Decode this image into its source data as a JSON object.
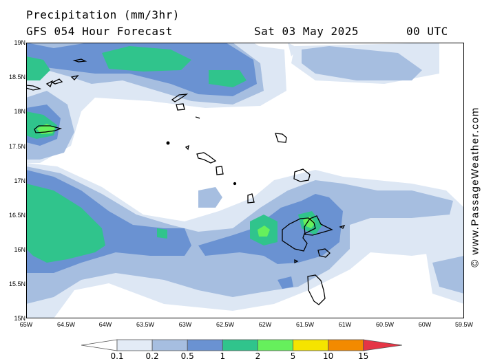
{
  "header": {
    "title": "Precipitation (mm/3hr)",
    "subtitle": "GFS 054 Hour Forecast",
    "date": "Sat 03 May 2025",
    "time": "00 UTC"
  },
  "credit": "© www.PassageWeather.com",
  "axes": {
    "x_ticks": [
      "65W",
      "64.5W",
      "64W",
      "63.5W",
      "63W",
      "62.5W",
      "62W",
      "61.5W",
      "61W",
      "60.5W",
      "60W",
      "59.5W"
    ],
    "y_ticks": [
      "19N",
      "18.5N",
      "18N",
      "17.5N",
      "17N",
      "16.5N",
      "16N",
      "15.5N",
      "15N"
    ]
  },
  "legend": {
    "labels": [
      "0.1",
      "0.2",
      "0.5",
      "1",
      "2",
      "5",
      "10",
      "15"
    ],
    "colors": [
      "#ffffff",
      "#e3ebf6",
      "#a6bee0",
      "#6a92d2",
      "#30c48c",
      "#66f05c",
      "#f5e400",
      "#f38a00",
      "#e53545"
    ]
  },
  "colors": {
    "c1": "#dde7f4",
    "c2": "#a6bee0",
    "c3": "#6a92d2",
    "c4": "#30c48c",
    "c5": "#66f05c",
    "coast": "#000000"
  }
}
